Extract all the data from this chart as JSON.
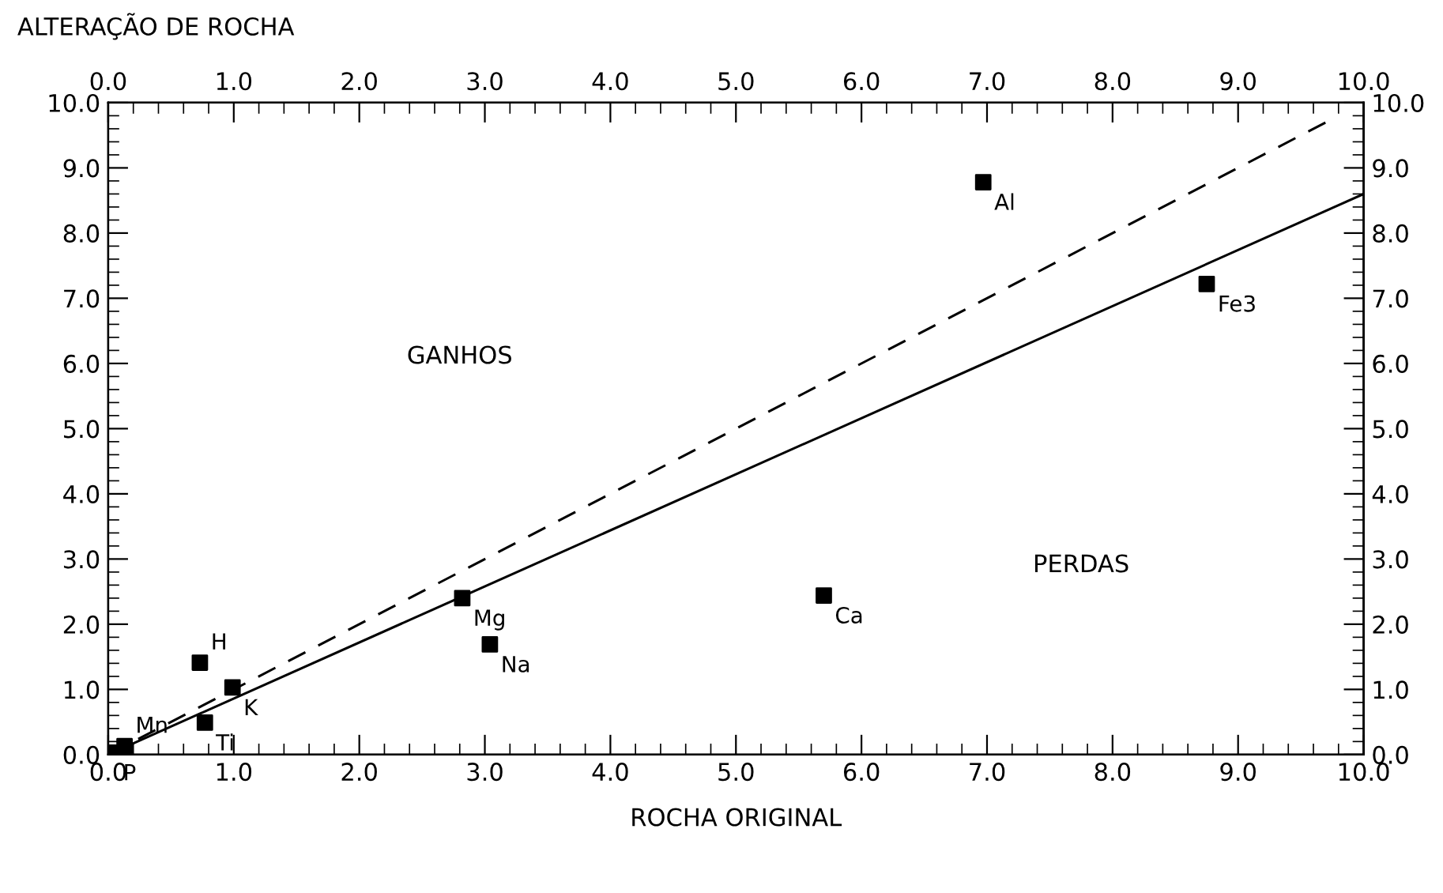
{
  "chart_data": {
    "type": "scatter",
    "xlabel": "ROCHA ORIGINAL",
    "ylabel": "ALTERAÇÃO DE ROCHA",
    "xlim": [
      0,
      10
    ],
    "ylim": [
      0,
      10
    ],
    "x2lim": [
      0,
      10
    ],
    "y2lim": [
      0,
      10
    ],
    "xticks": [
      {
        "value": 0,
        "label": "0.0"
      },
      {
        "value": 1,
        "label": "1.0"
      },
      {
        "value": 2,
        "label": "2.0"
      },
      {
        "value": 3,
        "label": "3.0"
      },
      {
        "value": 4,
        "label": "4.0"
      },
      {
        "value": 5,
        "label": "5.0"
      },
      {
        "value": 6,
        "label": "6.0"
      },
      {
        "value": 7,
        "label": "7.0"
      },
      {
        "value": 8,
        "label": "8.0"
      },
      {
        "value": 9,
        "label": "9.0"
      },
      {
        "value": 10,
        "label": "10.0"
      }
    ],
    "x2ticks": [
      {
        "value": 0,
        "label": "0.0"
      },
      {
        "value": 1,
        "label": "1.0"
      },
      {
        "value": 2,
        "label": "2.0"
      },
      {
        "value": 3,
        "label": "3.0"
      },
      {
        "value": 4,
        "label": "4.0"
      },
      {
        "value": 5,
        "label": "5.0"
      },
      {
        "value": 6,
        "label": "6.0"
      },
      {
        "value": 7,
        "label": "7.0"
      },
      {
        "value": 8,
        "label": "8.0"
      },
      {
        "value": 9,
        "label": "9.0"
      },
      {
        "value": 10,
        "label": "10.0"
      }
    ],
    "yticks": [
      {
        "value": 0,
        "label": "0.0"
      },
      {
        "value": 1,
        "label": "1.0"
      },
      {
        "value": 2,
        "label": "2.0"
      },
      {
        "value": 3,
        "label": "3.0"
      },
      {
        "value": 4,
        "label": "4.0"
      },
      {
        "value": 5,
        "label": "5.0"
      },
      {
        "value": 6,
        "label": "6.0"
      },
      {
        "value": 7,
        "label": "7.0"
      },
      {
        "value": 8,
        "label": "8.0"
      },
      {
        "value": 9,
        "label": "9.0"
      },
      {
        "value": 10,
        "label": "10.0"
      }
    ],
    "y2ticks": [
      {
        "value": 0,
        "label": "0.0"
      },
      {
        "value": 1,
        "label": "1.0"
      },
      {
        "value": 2,
        "label": "2.0"
      },
      {
        "value": 3,
        "label": "3.0"
      },
      {
        "value": 4,
        "label": "4.0"
      },
      {
        "value": 5,
        "label": "5.0"
      },
      {
        "value": 6,
        "label": "6.0"
      },
      {
        "value": 7,
        "label": "7.0"
      },
      {
        "value": 8,
        "label": "8.0"
      },
      {
        "value": 9,
        "label": "9.0"
      },
      {
        "value": 10,
        "label": "10.0"
      }
    ],
    "grid": false,
    "marker": "square",
    "series": [
      {
        "type": "line",
        "color": "#000000",
        "line_style": "dashed",
        "marker": "none",
        "x": [
          0,
          9.7
        ],
        "values": [
          0,
          9.7
        ]
      },
      {
        "type": "line",
        "color": "#000000",
        "line_style": "solid",
        "marker": "none",
        "x": [
          0,
          10
        ],
        "values": [
          0,
          8.6
        ]
      },
      {
        "name": "P",
        "color": "#000000",
        "x": [
          0.03
        ],
        "values": [
          0.03
        ]
      },
      {
        "name": "Mn",
        "color": "#000000",
        "x": [
          0.13
        ],
        "values": [
          0.13
        ]
      },
      {
        "name": "Ti",
        "color": "#000000",
        "x": [
          0.77
        ],
        "values": [
          0.49
        ]
      },
      {
        "name": "K",
        "color": "#000000",
        "x": [
          0.99
        ],
        "values": [
          1.03
        ]
      },
      {
        "name": "H",
        "color": "#000000",
        "x": [
          0.73
        ],
        "values": [
          1.41
        ]
      },
      {
        "name": "Mg",
        "color": "#000000",
        "x": [
          2.82
        ],
        "values": [
          2.4
        ]
      },
      {
        "name": "Na",
        "color": "#000000",
        "x": [
          3.04
        ],
        "values": [
          1.69
        ]
      },
      {
        "name": "Ca",
        "color": "#000000",
        "x": [
          5.7
        ],
        "values": [
          2.44
        ]
      },
      {
        "name": "Al",
        "color": "#000000",
        "x": [
          6.97
        ],
        "values": [
          8.78
        ]
      },
      {
        "name": "Fe3",
        "color": "#000000",
        "x": [
          8.75
        ],
        "values": [
          7.22
        ]
      }
    ],
    "annotations": [
      "GANHOS",
      "PERDAS"
    ]
  }
}
